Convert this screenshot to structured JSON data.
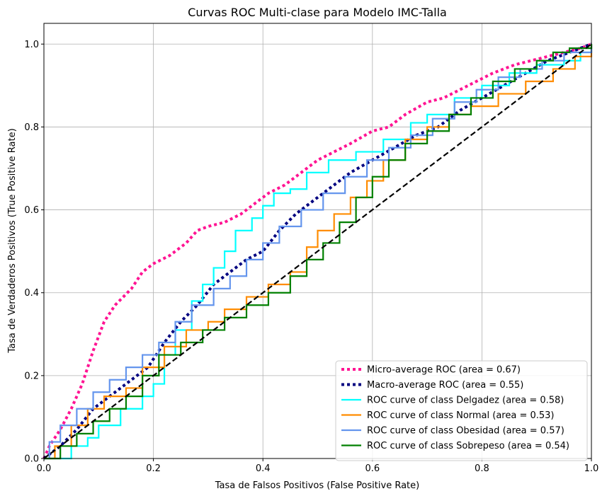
{
  "chart_data": {
    "type": "line",
    "title": "Curvas ROC Multi-clase para Modelo IMC-Talla",
    "xlabel": "Tasa de Falsos Positivos (False Positive Rate)",
    "ylabel": "Tasa de Verdaderos Positivos (True Positive Rate)",
    "xlim": [
      0,
      1
    ],
    "ylim": [
      0,
      1.05
    ],
    "xticks": [
      "0.0",
      "0.2",
      "0.4",
      "0.6",
      "0.8",
      "1.0"
    ],
    "yticks": [
      "0.0",
      "0.2",
      "0.4",
      "0.6",
      "0.8",
      "1.0"
    ],
    "grid": true,
    "legend_position": "lower-right",
    "series": [
      {
        "name": "Micro-average ROC (area = 0.67)",
        "color": "#ff1493",
        "style": "dotted",
        "points": [
          [
            0,
            0
          ],
          [
            0.01,
            0.03
          ],
          [
            0.03,
            0.07
          ],
          [
            0.05,
            0.12
          ],
          [
            0.07,
            0.18
          ],
          [
            0.09,
            0.26
          ],
          [
            0.11,
            0.33
          ],
          [
            0.13,
            0.37
          ],
          [
            0.16,
            0.41
          ],
          [
            0.18,
            0.45
          ],
          [
            0.2,
            0.47
          ],
          [
            0.23,
            0.49
          ],
          [
            0.26,
            0.52
          ],
          [
            0.28,
            0.55
          ],
          [
            0.3,
            0.56
          ],
          [
            0.33,
            0.57
          ],
          [
            0.36,
            0.59
          ],
          [
            0.38,
            0.61
          ],
          [
            0.41,
            0.64
          ],
          [
            0.44,
            0.66
          ],
          [
            0.47,
            0.69
          ],
          [
            0.5,
            0.72
          ],
          [
            0.53,
            0.74
          ],
          [
            0.56,
            0.76
          ],
          [
            0.6,
            0.79
          ],
          [
            0.63,
            0.8
          ],
          [
            0.66,
            0.83
          ],
          [
            0.7,
            0.86
          ],
          [
            0.73,
            0.87
          ],
          [
            0.76,
            0.89
          ],
          [
            0.79,
            0.91
          ],
          [
            0.82,
            0.93
          ],
          [
            0.86,
            0.95
          ],
          [
            0.89,
            0.96
          ],
          [
            0.92,
            0.97
          ],
          [
            0.95,
            0.98
          ],
          [
            0.98,
            0.99
          ],
          [
            1,
            1
          ]
        ]
      },
      {
        "name": "Macro-average ROC (area = 0.55)",
        "color": "#000080",
        "style": "dotted",
        "points": [
          [
            0,
            0
          ],
          [
            0.03,
            0.03
          ],
          [
            0.06,
            0.07
          ],
          [
            0.09,
            0.12
          ],
          [
            0.12,
            0.15
          ],
          [
            0.15,
            0.18
          ],
          [
            0.19,
            0.22
          ],
          [
            0.22,
            0.28
          ],
          [
            0.25,
            0.33
          ],
          [
            0.28,
            0.37
          ],
          [
            0.31,
            0.42
          ],
          [
            0.34,
            0.45
          ],
          [
            0.37,
            0.48
          ],
          [
            0.4,
            0.5
          ],
          [
            0.43,
            0.55
          ],
          [
            0.46,
            0.59
          ],
          [
            0.49,
            0.62
          ],
          [
            0.52,
            0.65
          ],
          [
            0.56,
            0.69
          ],
          [
            0.6,
            0.72
          ],
          [
            0.64,
            0.75
          ],
          [
            0.68,
            0.78
          ],
          [
            0.72,
            0.8
          ],
          [
            0.76,
            0.84
          ],
          [
            0.8,
            0.87
          ],
          [
            0.84,
            0.9
          ],
          [
            0.88,
            0.93
          ],
          [
            0.92,
            0.96
          ],
          [
            0.96,
            0.98
          ],
          [
            1,
            1
          ]
        ]
      },
      {
        "name": "ROC curve of class Delgadez (area = 0.58)",
        "color": "#00ffff",
        "style": "step",
        "points": [
          [
            0,
            0
          ],
          [
            0.05,
            0
          ],
          [
            0.05,
            0.03
          ],
          [
            0.08,
            0.05
          ],
          [
            0.1,
            0.08
          ],
          [
            0.14,
            0.12
          ],
          [
            0.18,
            0.15
          ],
          [
            0.2,
            0.18
          ],
          [
            0.22,
            0.25
          ],
          [
            0.24,
            0.31
          ],
          [
            0.27,
            0.38
          ],
          [
            0.29,
            0.42
          ],
          [
            0.31,
            0.46
          ],
          [
            0.33,
            0.5
          ],
          [
            0.35,
            0.55
          ],
          [
            0.38,
            0.58
          ],
          [
            0.4,
            0.61
          ],
          [
            0.42,
            0.64
          ],
          [
            0.45,
            0.65
          ],
          [
            0.48,
            0.69
          ],
          [
            0.52,
            0.72
          ],
          [
            0.57,
            0.74
          ],
          [
            0.62,
            0.77
          ],
          [
            0.67,
            0.81
          ],
          [
            0.7,
            0.83
          ],
          [
            0.75,
            0.87
          ],
          [
            0.8,
            0.9
          ],
          [
            0.85,
            0.93
          ],
          [
            0.9,
            0.95
          ],
          [
            0.95,
            0.96
          ],
          [
            0.98,
            0.98
          ],
          [
            1,
            1
          ]
        ]
      },
      {
        "name": "ROC curve of class Normal (area = 0.53)",
        "color": "#ff8c00",
        "style": "step",
        "points": [
          [
            0,
            0
          ],
          [
            0.02,
            0.03
          ],
          [
            0.05,
            0.08
          ],
          [
            0.08,
            0.12
          ],
          [
            0.11,
            0.15
          ],
          [
            0.15,
            0.17
          ],
          [
            0.18,
            0.22
          ],
          [
            0.22,
            0.27
          ],
          [
            0.26,
            0.31
          ],
          [
            0.3,
            0.33
          ],
          [
            0.33,
            0.36
          ],
          [
            0.37,
            0.39
          ],
          [
            0.41,
            0.42
          ],
          [
            0.45,
            0.45
          ],
          [
            0.48,
            0.51
          ],
          [
            0.5,
            0.55
          ],
          [
            0.53,
            0.59
          ],
          [
            0.56,
            0.63
          ],
          [
            0.59,
            0.67
          ],
          [
            0.62,
            0.72
          ],
          [
            0.66,
            0.77
          ],
          [
            0.7,
            0.8
          ],
          [
            0.74,
            0.83
          ],
          [
            0.78,
            0.85
          ],
          [
            0.83,
            0.88
          ],
          [
            0.88,
            0.91
          ],
          [
            0.93,
            0.94
          ],
          [
            0.97,
            0.97
          ],
          [
            1,
            1
          ]
        ]
      },
      {
        "name": "ROC curve of class Obesidad (area = 0.57)",
        "color": "#6495ed",
        "style": "step",
        "points": [
          [
            0,
            0
          ],
          [
            0.01,
            0.04
          ],
          [
            0.03,
            0.08
          ],
          [
            0.06,
            0.12
          ],
          [
            0.09,
            0.16
          ],
          [
            0.12,
            0.19
          ],
          [
            0.15,
            0.22
          ],
          [
            0.18,
            0.25
          ],
          [
            0.21,
            0.28
          ],
          [
            0.24,
            0.33
          ],
          [
            0.27,
            0.37
          ],
          [
            0.31,
            0.41
          ],
          [
            0.34,
            0.44
          ],
          [
            0.37,
            0.48
          ],
          [
            0.4,
            0.52
          ],
          [
            0.43,
            0.56
          ],
          [
            0.47,
            0.6
          ],
          [
            0.51,
            0.64
          ],
          [
            0.55,
            0.68
          ],
          [
            0.59,
            0.72
          ],
          [
            0.63,
            0.75
          ],
          [
            0.67,
            0.78
          ],
          [
            0.71,
            0.82
          ],
          [
            0.75,
            0.86
          ],
          [
            0.79,
            0.89
          ],
          [
            0.83,
            0.92
          ],
          [
            0.87,
            0.94
          ],
          [
            0.91,
            0.96
          ],
          [
            0.95,
            0.98
          ],
          [
            1,
            1
          ]
        ]
      },
      {
        "name": "ROC curve of class Sobrepeso (area = 0.54)",
        "color": "#008000",
        "style": "step",
        "points": [
          [
            0,
            0
          ],
          [
            0.03,
            0.03
          ],
          [
            0.06,
            0.06
          ],
          [
            0.09,
            0.09
          ],
          [
            0.12,
            0.12
          ],
          [
            0.15,
            0.15
          ],
          [
            0.18,
            0.2
          ],
          [
            0.21,
            0.25
          ],
          [
            0.25,
            0.28
          ],
          [
            0.29,
            0.31
          ],
          [
            0.33,
            0.34
          ],
          [
            0.37,
            0.37
          ],
          [
            0.41,
            0.4
          ],
          [
            0.45,
            0.44
          ],
          [
            0.48,
            0.48
          ],
          [
            0.51,
            0.52
          ],
          [
            0.54,
            0.57
          ],
          [
            0.57,
            0.63
          ],
          [
            0.6,
            0.68
          ],
          [
            0.63,
            0.72
          ],
          [
            0.66,
            0.76
          ],
          [
            0.7,
            0.79
          ],
          [
            0.74,
            0.83
          ],
          [
            0.78,
            0.87
          ],
          [
            0.82,
            0.91
          ],
          [
            0.86,
            0.94
          ],
          [
            0.9,
            0.96
          ],
          [
            0.93,
            0.98
          ],
          [
            0.96,
            0.99
          ],
          [
            1,
            1
          ]
        ]
      },
      {
        "name": "",
        "color": "#000000",
        "style": "dashed",
        "points": [
          [
            0,
            0
          ],
          [
            1,
            1
          ]
        ]
      }
    ]
  }
}
